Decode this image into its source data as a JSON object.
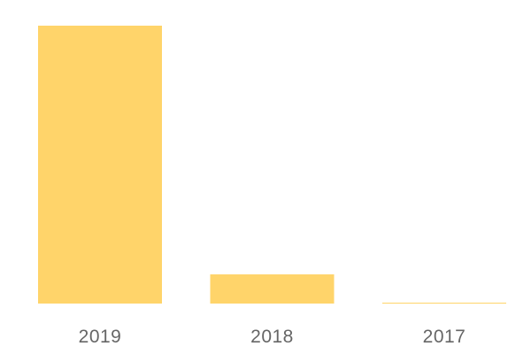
{
  "chart_data": {
    "type": "bar",
    "categories": [
      "2019",
      "2018",
      "2017"
    ],
    "values": [
      100,
      10.5,
      0.3
    ],
    "title": "",
    "xlabel": "",
    "ylabel": "",
    "ylim": [
      0,
      100
    ],
    "grid": false,
    "bar_color": "#FFD46A",
    "tick_color": "#666666"
  }
}
